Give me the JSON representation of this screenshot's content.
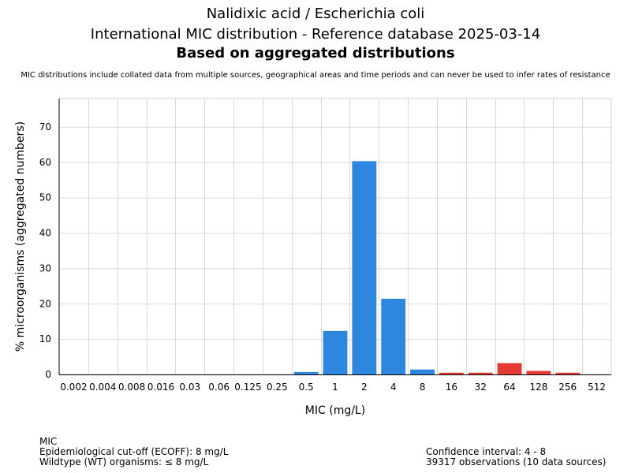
{
  "header": {
    "line1": "Nalidixic acid / Escherichia coli",
    "line2": "International MIC distribution - Reference database 2025-03-14",
    "line3": "Based on aggregated distributions",
    "note": "MIC distributions include collated data from multiple sources, geographical areas and time periods and can never be used to infer rates of resistance"
  },
  "footer": {
    "left": [
      "MIC",
      "Epidemiological cut-off (ECOFF): 8 mg/L",
      "Wildtype (WT) organisms: ≤ 8 mg/L"
    ],
    "right": [
      "Confidence interval: 4 - 8",
      "39317 observations (10 data sources)"
    ]
  },
  "chart_data": {
    "type": "bar",
    "xlabel": "MIC (mg/L)",
    "ylabel": "% microorganisms (aggregated numbers)",
    "ylim": [
      0,
      78
    ],
    "yticks": [
      0,
      10,
      20,
      30,
      40,
      50,
      60,
      70
    ],
    "grid": true,
    "categories": [
      "0.002",
      "0.004",
      "0.008",
      "0.016",
      "0.03",
      "0.06",
      "0.125",
      "0.25",
      "0.5",
      "1",
      "2",
      "4",
      "8",
      "16",
      "32",
      "64",
      "128",
      "256",
      "512"
    ],
    "values": [
      0,
      0,
      0,
      0,
      0,
      0,
      0,
      0,
      0.7,
      12.3,
      60.3,
      21.4,
      1.4,
      0.5,
      0.5,
      3.2,
      1.0,
      0.5,
      0
    ],
    "colors": {
      "wildtype": "#2e86de",
      "non_wildtype": "#e53935",
      "grid": "#d9d9d9"
    },
    "ecoff": "8"
  }
}
